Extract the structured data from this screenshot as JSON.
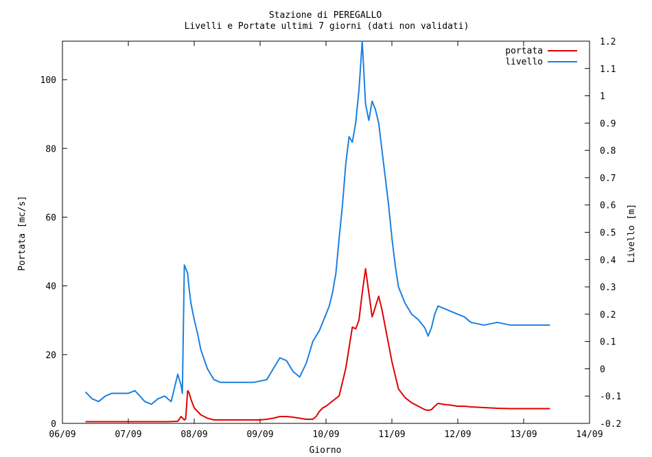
{
  "chart_data": {
    "type": "line",
    "title": "Stazione di PEREGALLO",
    "subtitle": "Livelli e Portate ultimi 7 giorni (dati non validati)",
    "xlabel": "Giorno",
    "ylabel_left": "Portata [mc/s]",
    "ylabel_right": "Livello [m]",
    "x_ticks": [
      "06/09",
      "07/09",
      "08/09",
      "09/09",
      "10/09",
      "11/09",
      "12/09",
      "13/09",
      "14/09"
    ],
    "y_left_ticks": [
      "0",
      "20",
      "40",
      "60",
      "80",
      "100"
    ],
    "y_right_ticks": [
      "-0.2",
      "-0.1",
      "0",
      "0.1",
      "0.2",
      "0.3",
      "0.4",
      "0.5",
      "0.6",
      "0.7",
      "0.8",
      "0.9",
      "1",
      "1.1",
      "1.2"
    ],
    "xlim": [
      0,
      8
    ],
    "ylim_left": [
      0,
      111.2
    ],
    "ylim_right": [
      -0.2,
      1.2
    ],
    "legend_position": "top-right",
    "series": [
      {
        "name": "portata",
        "color": "#e00000",
        "axis": "left",
        "x": [
          0.35,
          0.7,
          1.0,
          1.3,
          1.6,
          1.75,
          1.8,
          1.85,
          1.87,
          1.9,
          1.92,
          1.95,
          2.0,
          2.1,
          2.2,
          2.3,
          2.4,
          2.5,
          2.6,
          2.8,
          3.0,
          3.1,
          3.2,
          3.3,
          3.4,
          3.5,
          3.6,
          3.7,
          3.8,
          3.85,
          3.9,
          3.95,
          4.0,
          4.1,
          4.2,
          4.25,
          4.3,
          4.35,
          4.4,
          4.45,
          4.5,
          4.55,
          4.6,
          4.65,
          4.7,
          4.72,
          4.75,
          4.8,
          4.85,
          4.9,
          4.95,
          5.0,
          5.05,
          5.1,
          5.2,
          5.3,
          5.4,
          5.5,
          5.55,
          5.6,
          5.65,
          5.7,
          5.8,
          5.9,
          6.0,
          6.1,
          6.2,
          6.4,
          6.6,
          6.8,
          7.0,
          7.2,
          7.4
        ],
        "values": [
          0.5,
          0.5,
          0.5,
          0.5,
          0.5,
          0.6,
          2.0,
          1.0,
          1.2,
          9.5,
          9.0,
          7.0,
          4.5,
          2.5,
          1.5,
          1.0,
          1.0,
          1.0,
          1.0,
          1.0,
          1.0,
          1.2,
          1.5,
          2.0,
          2.0,
          1.8,
          1.5,
          1.2,
          1.2,
          2.0,
          3.5,
          4.5,
          5.0,
          6.5,
          8.0,
          12.0,
          16.0,
          22.0,
          28.0,
          27.5,
          30.0,
          38.0,
          45.0,
          38.0,
          31.0,
          32.0,
          34.0,
          37.0,
          33.0,
          28.0,
          23.0,
          18.0,
          14.0,
          10.0,
          7.5,
          6.0,
          5.0,
          4.0,
          3.8,
          4.0,
          5.0,
          5.8,
          5.5,
          5.3,
          5.0,
          5.0,
          4.8,
          4.6,
          4.4,
          4.3,
          4.3,
          4.3,
          4.3
        ]
      },
      {
        "name": "livello",
        "color": "#1a7fe0",
        "axis": "right",
        "x": [
          0.35,
          0.45,
          0.55,
          0.65,
          0.75,
          0.9,
          1.0,
          1.1,
          1.25,
          1.35,
          1.45,
          1.55,
          1.65,
          1.75,
          1.8,
          1.82,
          1.85,
          1.9,
          1.92,
          1.95,
          2.0,
          2.05,
          2.1,
          2.2,
          2.3,
          2.4,
          2.5,
          2.6,
          2.7,
          2.9,
          3.0,
          3.1,
          3.2,
          3.3,
          3.4,
          3.5,
          3.6,
          3.7,
          3.8,
          3.9,
          3.95,
          4.0,
          4.05,
          4.1,
          4.15,
          4.2,
          4.25,
          4.3,
          4.35,
          4.4,
          4.45,
          4.5,
          4.55,
          4.6,
          4.65,
          4.7,
          4.75,
          4.8,
          4.85,
          4.9,
          4.95,
          5.0,
          5.05,
          5.1,
          5.2,
          5.3,
          5.4,
          5.5,
          5.55,
          5.6,
          5.65,
          5.7,
          5.8,
          5.9,
          6.0,
          6.1,
          6.2,
          6.4,
          6.6,
          6.8,
          7.0,
          7.2,
          7.4
        ],
        "values": [
          -0.085,
          -0.11,
          -0.12,
          -0.1,
          -0.09,
          -0.09,
          -0.09,
          -0.08,
          -0.12,
          -0.13,
          -0.11,
          -0.1,
          -0.12,
          -0.02,
          -0.06,
          -0.09,
          0.38,
          0.35,
          0.3,
          0.24,
          0.18,
          0.13,
          0.07,
          0.0,
          -0.04,
          -0.05,
          -0.05,
          -0.05,
          -0.05,
          -0.05,
          -0.045,
          -0.04,
          0.0,
          0.04,
          0.03,
          -0.01,
          -0.03,
          0.02,
          0.1,
          0.14,
          0.17,
          0.2,
          0.23,
          0.28,
          0.35,
          0.48,
          0.6,
          0.75,
          0.85,
          0.83,
          0.9,
          1.02,
          1.2,
          0.97,
          0.91,
          0.98,
          0.95,
          0.9,
          0.8,
          0.7,
          0.6,
          0.48,
          0.38,
          0.3,
          0.24,
          0.2,
          0.18,
          0.15,
          0.12,
          0.15,
          0.2,
          0.23,
          0.22,
          0.21,
          0.2,
          0.19,
          0.17,
          0.16,
          0.17,
          0.16,
          0.16,
          0.16,
          0.16
        ]
      }
    ]
  }
}
